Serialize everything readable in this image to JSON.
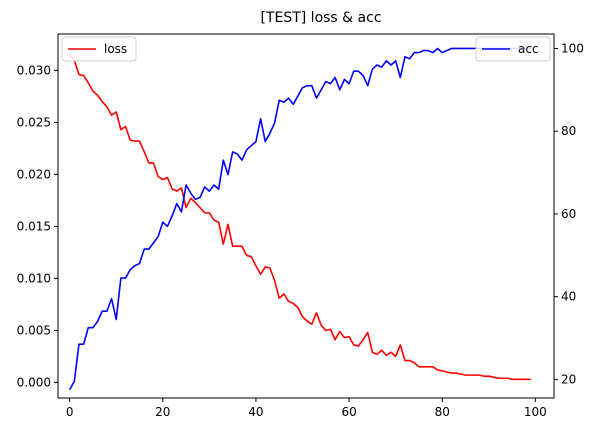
{
  "chart_data": {
    "type": "line",
    "title": "[TEST] loss & acc",
    "x": [
      0,
      1,
      2,
      3,
      4,
      5,
      6,
      7,
      8,
      9,
      10,
      11,
      12,
      13,
      14,
      15,
      16,
      17,
      18,
      19,
      20,
      21,
      22,
      23,
      24,
      25,
      26,
      27,
      28,
      29,
      30,
      31,
      32,
      33,
      34,
      35,
      36,
      37,
      38,
      39,
      40,
      41,
      42,
      43,
      44,
      45,
      46,
      47,
      48,
      49,
      50,
      51,
      52,
      53,
      54,
      55,
      56,
      57,
      58,
      59,
      60,
      61,
      62,
      63,
      64,
      65,
      66,
      67,
      68,
      69,
      70,
      71,
      72,
      73,
      74,
      75,
      76,
      77,
      78,
      79,
      80,
      81,
      82,
      83,
      84,
      85,
      86,
      87,
      88,
      89,
      90,
      91,
      92,
      93,
      94,
      95,
      96,
      97,
      98,
      99
    ],
    "xlim": [
      -2.5,
      104
    ],
    "xticks": [
      0,
      20,
      40,
      60,
      80,
      100
    ],
    "xtick_labels": [
      "0",
      "20",
      "40",
      "60",
      "80",
      "100"
    ],
    "axes": {
      "left": {
        "ylim": [
          -0.0015,
          0.0335
        ],
        "yticks": [
          0,
          0.005,
          0.01,
          0.015,
          0.02,
          0.025,
          0.03
        ],
        "ytick_labels": [
          "0.000",
          "0.005",
          "0.010",
          "0.015",
          "0.020",
          "0.025",
          "0.030"
        ]
      },
      "right": {
        "ylim": [
          15.5,
          103.5
        ],
        "yticks": [
          20,
          40,
          60,
          80,
          100
        ],
        "ytick_labels": [
          "20",
          "40",
          "60",
          "80",
          "100"
        ]
      }
    },
    "series": [
      {
        "name": "loss",
        "axis": "left",
        "color": "#ff0000",
        "legend_position": "upper-left",
        "values": [
          0.0315,
          0.031,
          0.0296,
          0.0295,
          0.0288,
          0.028,
          0.0276,
          0.027,
          0.0265,
          0.0257,
          0.026,
          0.0243,
          0.0246,
          0.0233,
          0.0232,
          0.0232,
          0.0222,
          0.0211,
          0.0211,
          0.0198,
          0.0195,
          0.0197,
          0.0186,
          0.0184,
          0.0187,
          0.0168,
          0.0177,
          0.0173,
          0.0168,
          0.0163,
          0.0163,
          0.0156,
          0.0154,
          0.0133,
          0.0152,
          0.0131,
          0.0131,
          0.0131,
          0.0122,
          0.0121,
          0.0112,
          0.0104,
          0.0111,
          0.011,
          0.0098,
          0.0081,
          0.0085,
          0.0078,
          0.0076,
          0.0072,
          0.0063,
          0.0059,
          0.0056,
          0.0067,
          0.0055,
          0.005,
          0.0051,
          0.0041,
          0.0049,
          0.0043,
          0.0044,
          0.0036,
          0.0035,
          0.0041,
          0.0048,
          0.0029,
          0.0027,
          0.0031,
          0.0026,
          0.0029,
          0.0025,
          0.0036,
          0.0021,
          0.0021,
          0.0019,
          0.0015,
          0.0015,
          0.0015,
          0.0015,
          0.0012,
          0.0011,
          0.001,
          0.0009,
          0.0009,
          0.0008,
          0.0007,
          0.0007,
          0.0007,
          0.0007,
          0.0006,
          0.0006,
          0.0005,
          0.0004,
          0.0004,
          0.0004,
          0.0003,
          0.0003,
          0.0003,
          0.0003,
          0.0003
        ]
      },
      {
        "name": "acc",
        "axis": "right",
        "color": "#0000ff",
        "legend_position": "upper-right",
        "values": [
          17.5,
          19.5,
          28.5,
          28.5,
          32.5,
          32.5,
          34.0,
          36.5,
          36.5,
          39.5,
          34.5,
          44.5,
          44.5,
          46.5,
          47.5,
          48.0,
          51.5,
          51.5,
          53.0,
          54.5,
          58.0,
          57.0,
          59.5,
          62.5,
          60.5,
          67.0,
          65.0,
          63.5,
          64.0,
          66.5,
          65.5,
          67.0,
          66.0,
          73.0,
          69.5,
          75.0,
          74.5,
          73.0,
          75.5,
          76.5,
          77.5,
          83.0,
          77.5,
          79.5,
          82.0,
          87.5,
          87.0,
          88.0,
          86.5,
          88.5,
          90.5,
          91.0,
          91.0,
          88.0,
          90.0,
          92.0,
          91.5,
          93.0,
          90.0,
          92.5,
          91.5,
          94.5,
          94.5,
          93.5,
          91.0,
          95.0,
          96.0,
          95.5,
          97.0,
          96.0,
          97.0,
          93.0,
          98.0,
          97.5,
          99.0,
          99.0,
          99.5,
          99.5,
          99.0,
          100.0,
          99.0,
          99.5,
          100.0,
          100.0,
          100.0,
          100.0,
          100.0,
          100.0,
          100.0,
          100.0,
          100.0,
          100.0,
          100.0,
          100.0,
          100.0,
          100.0,
          100.0,
          100.0,
          100.0,
          100.0
        ]
      }
    ],
    "grid": false
  }
}
